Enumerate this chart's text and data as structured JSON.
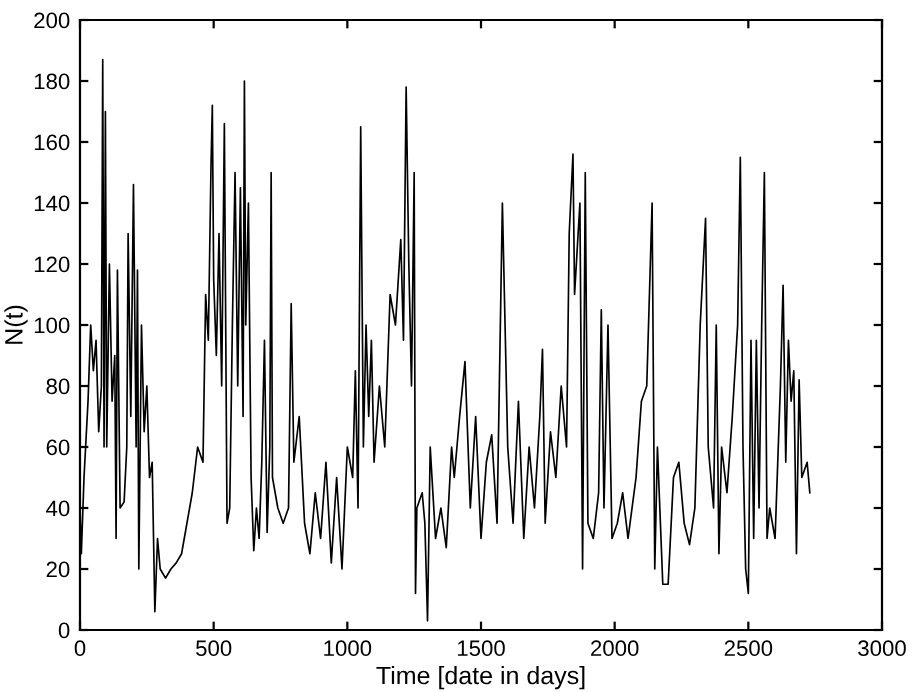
{
  "chart_data": {
    "type": "line",
    "xlabel": "Time [date in days]",
    "ylabel": "N(t)",
    "xlim": [
      0,
      3000
    ],
    "xticks": [
      0,
      500,
      1000,
      1500,
      2000,
      2500,
      3000
    ],
    "ylim": [
      0,
      200
    ],
    "yticks": [
      0,
      20,
      40,
      60,
      80,
      100,
      120,
      140,
      160,
      180,
      200
    ],
    "grid": false,
    "marker": "none",
    "line_style": "solid",
    "series": [
      {
        "color": "#000000",
        "x": [
          0,
          5,
          15,
          30,
          40,
          50,
          60,
          70,
          80,
          85,
          90,
          95,
          100,
          110,
          120,
          130,
          135,
          140,
          150,
          165,
          175,
          180,
          190,
          200,
          210,
          215,
          220,
          230,
          240,
          250,
          260,
          270,
          280,
          290,
          300,
          320,
          340,
          360,
          380,
          400,
          420,
          440,
          460,
          470,
          480,
          490,
          495,
          500,
          510,
          520,
          530,
          540,
          550,
          560,
          570,
          580,
          590,
          600,
          610,
          615,
          620,
          630,
          640,
          650,
          660,
          670,
          680,
          690,
          700,
          710,
          715,
          720,
          740,
          760,
          780,
          790,
          800,
          820,
          840,
          860,
          880,
          900,
          920,
          940,
          960,
          980,
          1000,
          1020,
          1030,
          1040,
          1050,
          1060,
          1070,
          1080,
          1090,
          1100,
          1120,
          1140,
          1160,
          1180,
          1200,
          1210,
          1220,
          1230,
          1240,
          1250,
          1255,
          1260,
          1280,
          1290,
          1300,
          1310,
          1330,
          1350,
          1370,
          1390,
          1400,
          1420,
          1440,
          1460,
          1480,
          1500,
          1520,
          1540,
          1560,
          1580,
          1600,
          1620,
          1640,
          1660,
          1680,
          1700,
          1720,
          1730,
          1740,
          1760,
          1780,
          1800,
          1820,
          1830,
          1844,
          1850,
          1870,
          1880,
          1890,
          1900,
          1920,
          1940,
          1950,
          1960,
          1975,
          1990,
          2010,
          2030,
          2050,
          2080,
          2100,
          2120,
          2140,
          2150,
          2160,
          2180,
          2200,
          2220,
          2240,
          2260,
          2280,
          2300,
          2320,
          2340,
          2350,
          2370,
          2380,
          2390,
          2400,
          2420,
          2440,
          2460,
          2470,
          2480,
          2490,
          2500,
          2510,
          2520,
          2530,
          2540,
          2550,
          2560,
          2570,
          2580,
          2600,
          2620,
          2630,
          2640,
          2650,
          2660,
          2670,
          2680,
          2690,
          2700,
          2720,
          2730
        ],
        "values": [
          40,
          25,
          50,
          75,
          100,
          85,
          95,
          65,
          80,
          187,
          60,
          170,
          60,
          120,
          75,
          90,
          30,
          118,
          40,
          42,
          60,
          130,
          70,
          146,
          60,
          118,
          20,
          100,
          65,
          80,
          50,
          55,
          6,
          30,
          20,
          17,
          20,
          22,
          25,
          35,
          45,
          60,
          55,
          110,
          95,
          152,
          172,
          115,
          90,
          130,
          80,
          166,
          35,
          40,
          100,
          150,
          80,
          145,
          70,
          180,
          100,
          140,
          50,
          26,
          40,
          30,
          55,
          95,
          32,
          60,
          150,
          50,
          40,
          35,
          40,
          107,
          55,
          70,
          35,
          25,
          45,
          30,
          55,
          22,
          50,
          20,
          60,
          50,
          85,
          40,
          165,
          60,
          100,
          70,
          95,
          55,
          80,
          60,
          110,
          100,
          128,
          95,
          178,
          120,
          80,
          150,
          12,
          40,
          45,
          35,
          3,
          60,
          30,
          40,
          27,
          60,
          50,
          70,
          88,
          40,
          70,
          30,
          55,
          64,
          35,
          140,
          60,
          35,
          75,
          30,
          60,
          40,
          70,
          92,
          35,
          65,
          50,
          80,
          60,
          130,
          156,
          110,
          140,
          20,
          150,
          35,
          30,
          45,
          105,
          40,
          100,
          30,
          35,
          45,
          30,
          50,
          75,
          80,
          140,
          20,
          60,
          15,
          15,
          50,
          55,
          35,
          28,
          40,
          100,
          135,
          60,
          40,
          100,
          25,
          60,
          45,
          70,
          100,
          155,
          60,
          20,
          12,
          95,
          30,
          95,
          40,
          100,
          150,
          30,
          40,
          30,
          80,
          113,
          55,
          95,
          75,
          85,
          25,
          82,
          50,
          55,
          45
        ]
      }
    ]
  }
}
